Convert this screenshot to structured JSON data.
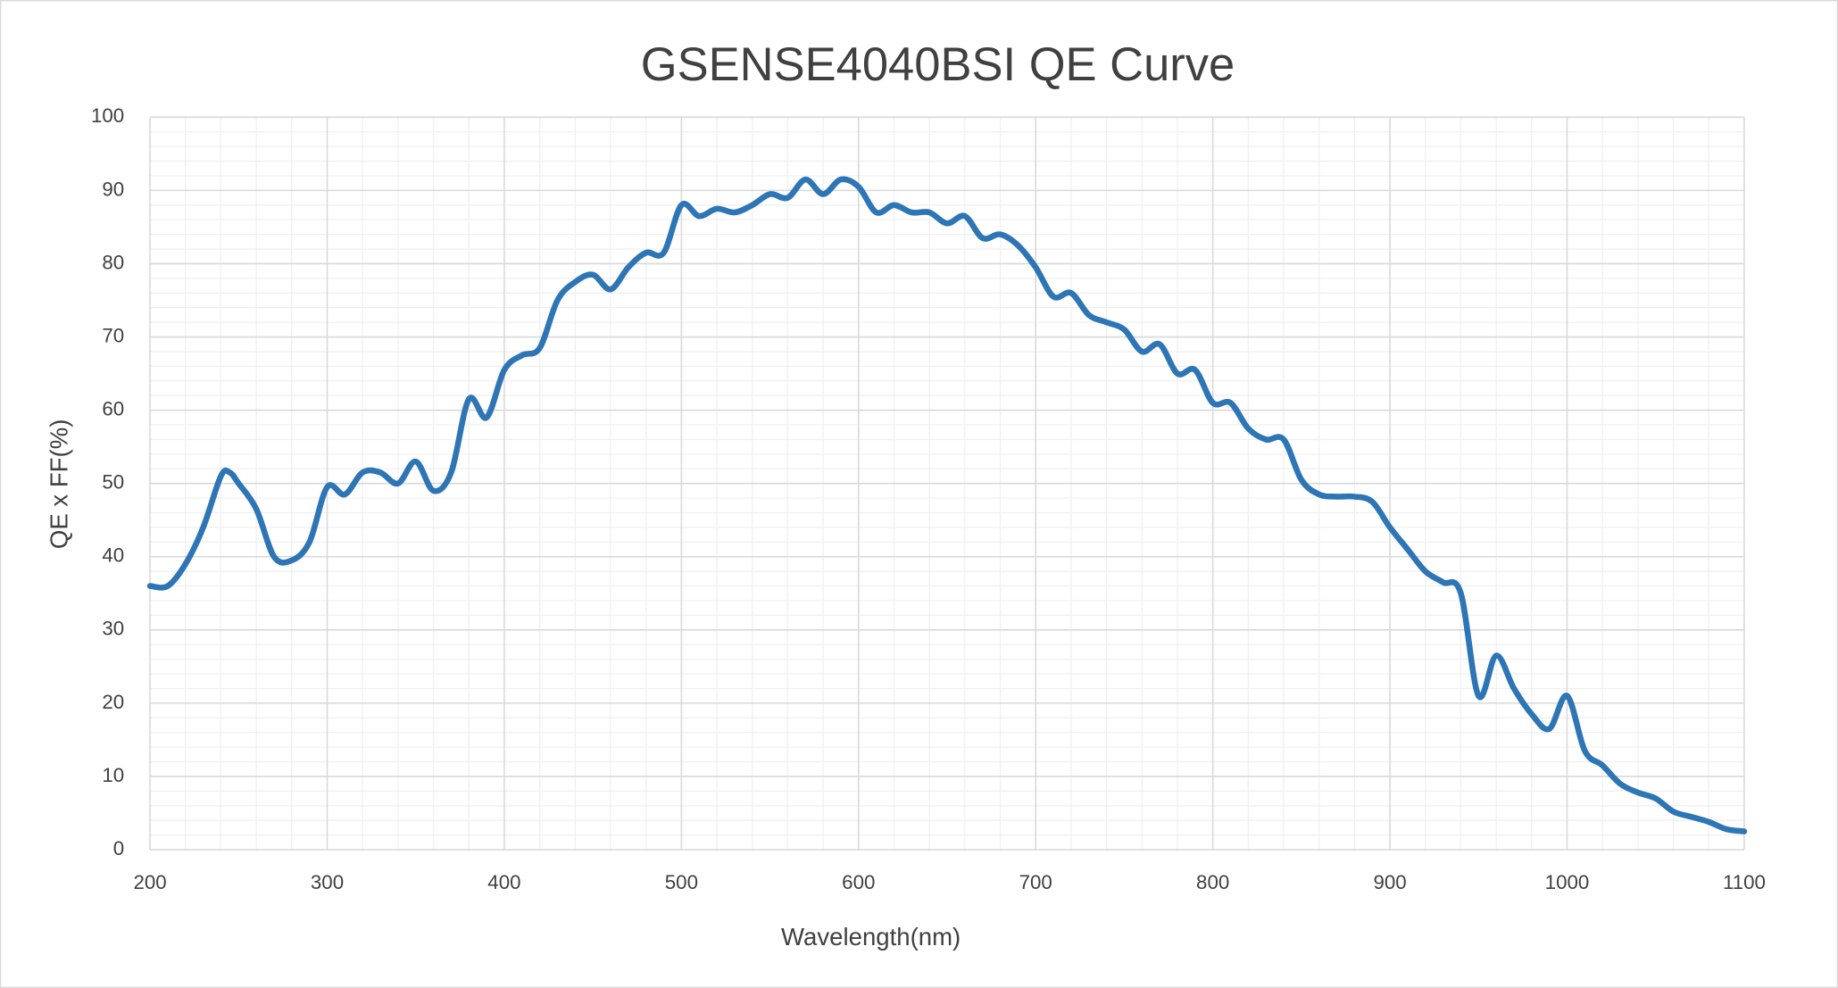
{
  "chart_data": {
    "type": "line",
    "title": "GSENSE4040BSI QE  Curve",
    "x_label": "Wavelength(nm)",
    "y_label": "QE x FF(%)",
    "xlim": [
      200,
      1100
    ],
    "xticks": [
      200,
      300,
      400,
      500,
      600,
      700,
      800,
      900,
      1000,
      1100
    ],
    "ylim": [
      0,
      100
    ],
    "yticks": [
      0,
      10,
      20,
      30,
      40,
      50,
      60,
      70,
      80,
      90,
      100
    ],
    "grid": true,
    "minor_grid": true,
    "x": [
      200,
      210,
      220,
      230,
      240,
      245,
      250,
      260,
      270,
      280,
      290,
      300,
      310,
      320,
      330,
      340,
      350,
      360,
      370,
      380,
      390,
      400,
      410,
      420,
      430,
      440,
      450,
      460,
      470,
      480,
      490,
      500,
      510,
      520,
      530,
      540,
      550,
      560,
      570,
      580,
      590,
      600,
      610,
      620,
      630,
      640,
      650,
      660,
      670,
      680,
      690,
      700,
      710,
      720,
      730,
      740,
      750,
      760,
      770,
      780,
      790,
      800,
      810,
      820,
      830,
      840,
      850,
      860,
      870,
      880,
      890,
      900,
      910,
      920,
      930,
      940,
      950,
      960,
      970,
      980,
      990,
      1000,
      1010,
      1020,
      1030,
      1040,
      1050,
      1060,
      1070,
      1080,
      1090,
      1100
    ],
    "series": [
      {
        "name": "QE",
        "color": "#2e75b6",
        "values": [
          36,
          36,
          39,
          44,
          51,
          51.5,
          50,
          46.5,
          40,
          39.5,
          42,
          49.5,
          48.5,
          51.5,
          51.5,
          50,
          53,
          49,
          51.5,
          61.5,
          59,
          65.5,
          67.5,
          68.5,
          75,
          77.5,
          78.5,
          76.5,
          79.5,
          81.5,
          81.5,
          88,
          86.5,
          87.5,
          87,
          88,
          89.5,
          89,
          91.5,
          89.5,
          91.5,
          90.5,
          87,
          88,
          87,
          87,
          85.5,
          86.5,
          83.5,
          84,
          82.5,
          79.5,
          75.5,
          76,
          73,
          72,
          71,
          68,
          69,
          65,
          65.5,
          61,
          61,
          57.5,
          56,
          56,
          50.5,
          48.5,
          48.2,
          48.2,
          47.5,
          44,
          41,
          38,
          36.5,
          35,
          21,
          26.5,
          22,
          18.5,
          16.5,
          21,
          13.5,
          11.5,
          9,
          7.8,
          7,
          5.2,
          4.5,
          3.8,
          2.8,
          2.5
        ]
      }
    ]
  }
}
